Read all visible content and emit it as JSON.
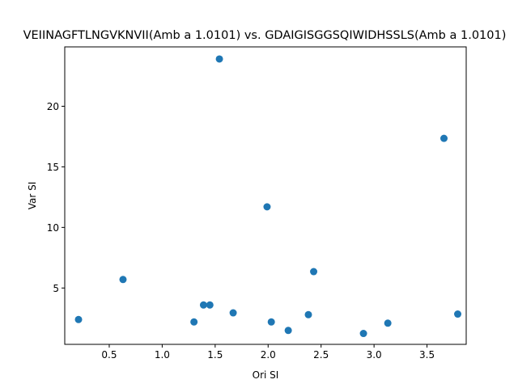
{
  "chart_data": {
    "type": "scatter",
    "title": "VEIINAGFTLNGVKNVII(Amb a 1.0101) vs. GDAIGISGGSQIWIDHSSLS(Amb a 1.0101)",
    "xlabel": "Ori SI",
    "ylabel": "Var SI",
    "xlim": [
      0.08,
      3.87
    ],
    "ylim": [
      0.35,
      24.9
    ],
    "xticks": [
      0.5,
      1.0,
      1.5,
      2.0,
      2.5,
      3.0,
      3.5
    ],
    "xtick_labels": [
      "0.5",
      "1.0",
      "1.5",
      "2.0",
      "2.5",
      "3.0",
      "3.5"
    ],
    "yticks": [
      5,
      10,
      15,
      20
    ],
    "ytick_labels": [
      "5",
      "10",
      "15",
      "20"
    ],
    "grid": false,
    "legend": "none",
    "marker_color": "#1f77b4",
    "series": [
      {
        "x": [
          0.21,
          0.63,
          1.3,
          1.39,
          1.45,
          1.54,
          1.67,
          1.99,
          2.03,
          2.19,
          2.38,
          2.43,
          2.9,
          3.13,
          3.66,
          3.79
        ],
        "y": [
          2.4,
          5.7,
          2.2,
          3.6,
          3.6,
          23.9,
          2.95,
          11.7,
          2.2,
          1.5,
          2.8,
          6.35,
          1.25,
          2.1,
          17.35,
          2.85
        ]
      }
    ]
  }
}
